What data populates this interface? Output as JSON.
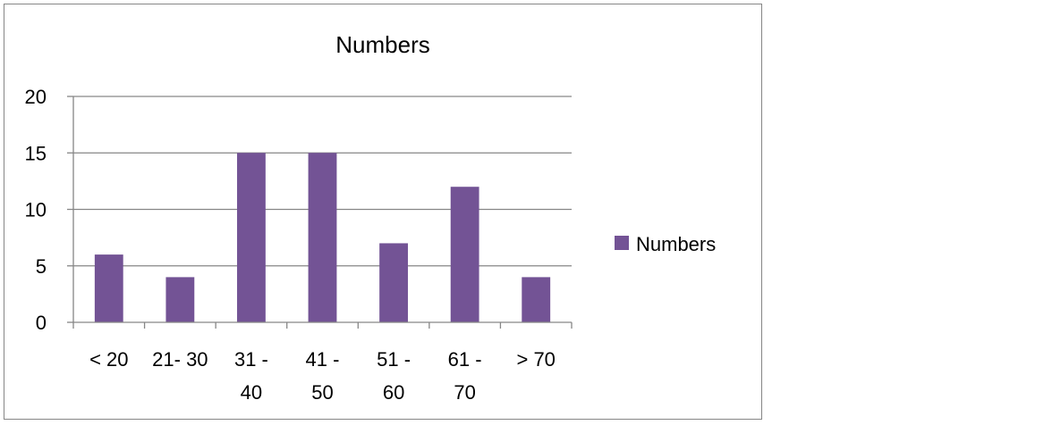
{
  "chart_data": {
    "type": "bar",
    "title": "Numbers",
    "categories": [
      [
        "< 20"
      ],
      [
        "21- 30"
      ],
      [
        "31 -",
        "40"
      ],
      [
        "41 -",
        "50"
      ],
      [
        "51 -",
        "60"
      ],
      [
        "61 -",
        "70"
      ],
      [
        "> 70"
      ]
    ],
    "series": [
      {
        "name": "Numbers",
        "values": [
          6,
          4,
          15,
          15,
          7,
          12,
          4
        ]
      }
    ],
    "ylim": [
      0,
      20
    ],
    "yticks": [
      0,
      5,
      10,
      15,
      20
    ],
    "grid": true,
    "legend": "right",
    "colors": {
      "bar": "#735395",
      "grid": "#868686",
      "axis": "#868686"
    }
  }
}
